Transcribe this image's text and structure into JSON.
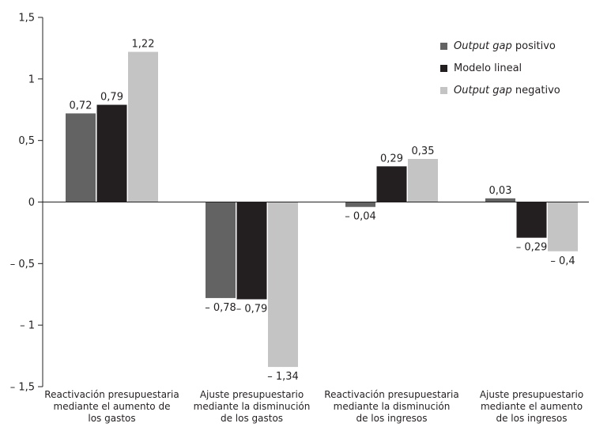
{
  "chart_data": {
    "type": "bar",
    "categories": [
      [
        "Reactivación presupuestaria",
        "mediante el aumento de",
        "los gastos"
      ],
      [
        "Ajuste presupuestario",
        "mediante la disminución",
        "de los gastos"
      ],
      [
        "Reactivación presupuestaria",
        "mediante la disminución",
        "de los ingresos"
      ],
      [
        "Ajuste presupuestario",
        "mediante el aumento",
        "de los ingresos"
      ]
    ],
    "series": [
      {
        "name": "Output gap positivo",
        "name_parts": [
          {
            "text": "Output gap",
            "italic": true
          },
          {
            "text": " positivo",
            "italic": false
          }
        ],
        "color": "#636363",
        "values": [
          0.72,
          -0.78,
          -0.04,
          0.03
        ],
        "labels": [
          "0,72",
          "– 0,78",
          "– 0,04",
          "0,03"
        ]
      },
      {
        "name": "Modelo lineal",
        "name_parts": [
          {
            "text": "Modelo lineal",
            "italic": false
          }
        ],
        "color": "#231f20",
        "values": [
          0.79,
          -0.79,
          0.29,
          -0.29
        ],
        "labels": [
          "0,79",
          "– 0,79",
          "0,29",
          "– 0,29"
        ]
      },
      {
        "name": "Output gap negativo",
        "name_parts": [
          {
            "text": "Output gap",
            "italic": true
          },
          {
            "text": " negativo",
            "italic": false
          }
        ],
        "color": "#c4c4c4",
        "values": [
          1.22,
          -1.34,
          0.35,
          -0.4
        ],
        "labels": [
          "1,22",
          "– 1,34",
          "0,35",
          "– 0,4"
        ]
      }
    ],
    "y_ticks": [
      1.5,
      1,
      0.5,
      0,
      -0.5,
      -1,
      -1.5
    ],
    "y_tick_labels": [
      "1,5",
      "1",
      "0,5",
      "0",
      "– 0,5",
      "– 1",
      "– 1,5"
    ],
    "ylim": [
      -1.5,
      1.5
    ],
    "title": "",
    "xlabel": "",
    "ylabel": "",
    "grid": false,
    "legend_position": "top-right"
  }
}
